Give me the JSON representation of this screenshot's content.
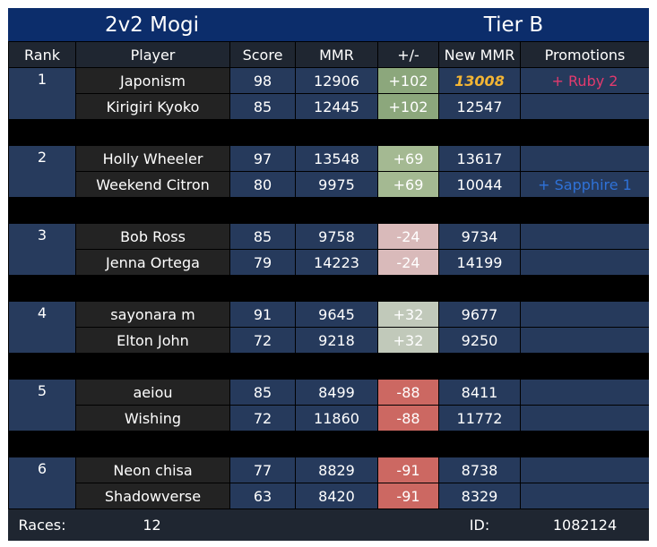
{
  "header": {
    "title": "2v2 Mogi",
    "tier": "Tier B"
  },
  "columns": [
    "Rank",
    "Player",
    "Score",
    "MMR",
    "+/-",
    "New MMR",
    "Promotions"
  ],
  "teams": [
    {
      "rank": 1,
      "players": [
        {
          "name": "Japonism",
          "score": 98,
          "mmr": 12906,
          "delta": "+102",
          "delta_color": "#8ca77c",
          "new_mmr": 13008,
          "new_mmr_highlight": true,
          "promotion": "+ Ruby 2",
          "promotion_color": "#e23a6e"
        },
        {
          "name": "Kirigiri Kyoko",
          "score": 85,
          "mmr": 12445,
          "delta": "+102",
          "delta_color": "#8ca77c",
          "new_mmr": 12547
        }
      ]
    },
    {
      "rank": 2,
      "players": [
        {
          "name": "Holly Wheeler",
          "score": 97,
          "mmr": 13548,
          "delta": "+69",
          "delta_color": "#a4b992",
          "new_mmr": 13617
        },
        {
          "name": "Weekend Citron",
          "score": 80,
          "mmr": 9975,
          "delta": "+69",
          "delta_color": "#a4b992",
          "new_mmr": 10044,
          "promotion": "+ Sapphire 1",
          "promotion_color": "#2f72d8"
        }
      ]
    },
    {
      "rank": 3,
      "players": [
        {
          "name": "Bob Ross",
          "score": 85,
          "mmr": 9758,
          "delta": "-24",
          "delta_color": "#d9baba",
          "new_mmr": 9734
        },
        {
          "name": "Jenna Ortega",
          "score": 79,
          "mmr": 14223,
          "delta": "-24",
          "delta_color": "#d9baba",
          "new_mmr": 14199
        }
      ]
    },
    {
      "rank": 4,
      "players": [
        {
          "name": "sayonara m",
          "score": 91,
          "mmr": 9645,
          "delta": "+32",
          "delta_color": "#c1c9ba",
          "new_mmr": 9677
        },
        {
          "name": "Elton John",
          "score": 72,
          "mmr": 9218,
          "delta": "+32",
          "delta_color": "#c1c9ba",
          "new_mmr": 9250
        }
      ]
    },
    {
      "rank": 5,
      "players": [
        {
          "name": "aeiou",
          "score": 85,
          "mmr": 8499,
          "delta": "-88",
          "delta_color": "#cc6862",
          "new_mmr": 8411
        },
        {
          "name": "Wishing",
          "score": 72,
          "mmr": 11860,
          "delta": "-88",
          "delta_color": "#cc6862",
          "new_mmr": 11772
        }
      ]
    },
    {
      "rank": 6,
      "players": [
        {
          "name": "Neon chisa",
          "score": 77,
          "mmr": 8829,
          "delta": "-91",
          "delta_color": "#cc6862",
          "new_mmr": 8738
        },
        {
          "name": "Shadowverse",
          "score": 63,
          "mmr": 8420,
          "delta": "-91",
          "delta_color": "#cc6862",
          "new_mmr": 8329
        }
      ]
    }
  ],
  "footer": {
    "races_label": "Races:",
    "races": 12,
    "id_label": "ID:",
    "id": 1082124
  }
}
